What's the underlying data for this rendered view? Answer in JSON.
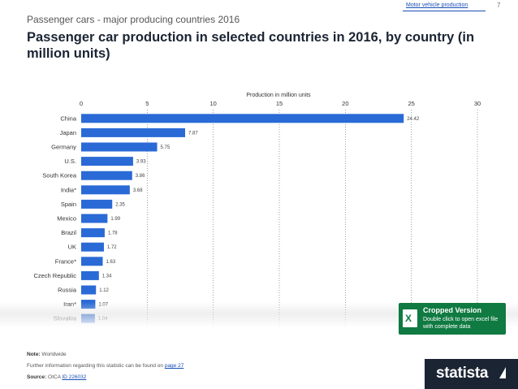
{
  "header": {
    "top_link": "Motor vehicle production",
    "page_number": "7",
    "subtitle": "Passenger cars - major producing countries 2016",
    "title": "Passenger car production in selected countries in 2016, by country (in million units)"
  },
  "chart_data": {
    "type": "bar",
    "orientation": "horizontal",
    "title": "",
    "xlabel": "Production in million units",
    "ylabel": "",
    "xlim": [
      0,
      30
    ],
    "xticks": [
      "0",
      "5",
      "10",
      "15",
      "20",
      "25",
      "30"
    ],
    "grid": "vertical dotted",
    "bar_color": "#2a6ad6",
    "categories": [
      "China",
      "Japan",
      "Germany",
      "U.S.",
      "South Korea",
      "India*",
      "Spain",
      "Mexico",
      "Brazil",
      "UK",
      "France*",
      "Czech Republic",
      "Russia",
      "Iran*",
      "Slovakia"
    ],
    "values": [
      24.42,
      7.87,
      5.75,
      3.93,
      3.86,
      3.68,
      2.35,
      1.99,
      1.78,
      1.72,
      1.63,
      1.34,
      1.12,
      1.07,
      1.04
    ],
    "value_labels": [
      "24.42",
      "7.87",
      "5.75",
      "3.93",
      "3.86",
      "3.68",
      "2.35",
      "1.99",
      "1.78",
      "1.72",
      "1.63",
      "1.34",
      "1.12",
      "1.07",
      "1.04"
    ]
  },
  "cropped_box": {
    "title": "Cropped Version",
    "text": "Double click to open excel file with complete data",
    "icon": "excel-icon",
    "color": "#0f7a41"
  },
  "footer": {
    "note_label": "Note:",
    "note_text": "Worldwide",
    "further_text": "Further information regarding this statistic can be found on",
    "further_link": "page 27",
    "source_label": "Source:",
    "source_text": "OICA",
    "source_link": "ID 226032",
    "logo": "statista"
  }
}
